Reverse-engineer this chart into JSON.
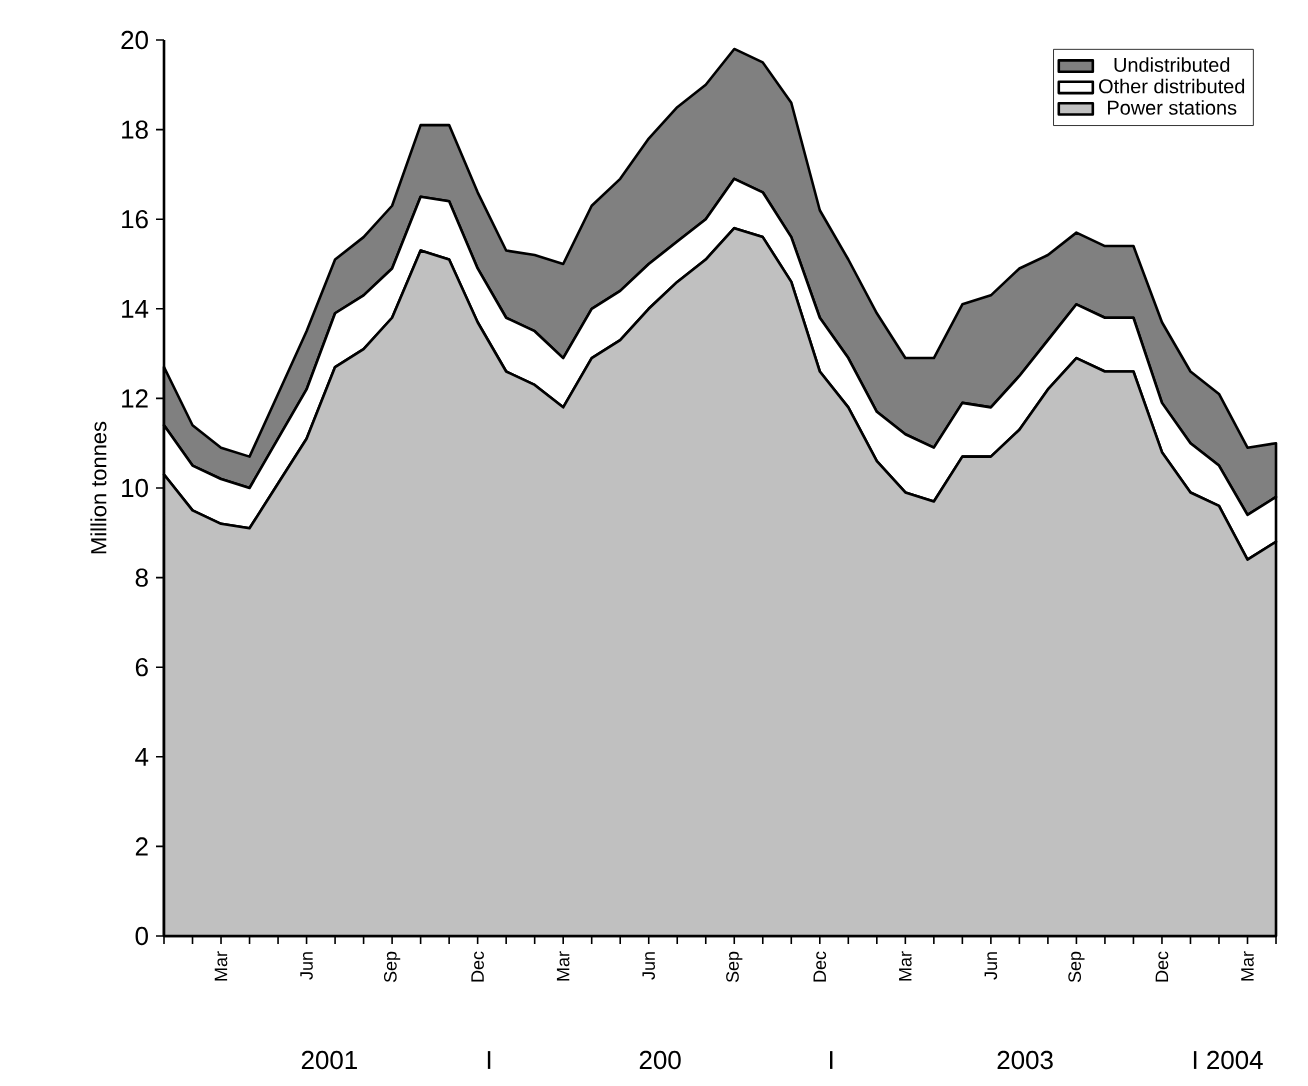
{
  "chart_data": {
    "type": "area",
    "stacked": true,
    "ylabel": "Million tonnes",
    "categories": [
      null,
      null,
      "Mar",
      null,
      null,
      "Jun",
      null,
      null,
      "Sep",
      null,
      null,
      "Dec",
      null,
      null,
      "Mar",
      null,
      null,
      "Jun",
      null,
      null,
      "Sep",
      null,
      null,
      "Dec",
      null,
      null,
      "Mar",
      null,
      null,
      "Jun",
      null,
      null,
      "Sep",
      null,
      null,
      "Dec",
      null,
      null,
      "Mar",
      null
    ],
    "series": [
      {
        "name": "Power stations",
        "color": "#c0c0c0",
        "values": [
          10.3,
          9.5,
          9.2,
          9.1,
          10.1,
          11.1,
          12.7,
          13.1,
          13.8,
          15.3,
          15.1,
          13.7,
          12.6,
          12.3,
          11.8,
          12.9,
          13.3,
          14.0,
          14.6,
          15.1,
          15.8,
          15.6,
          14.6,
          12.6,
          11.8,
          10.6,
          9.9,
          9.7,
          10.7,
          10.7,
          11.3,
          12.2,
          12.9,
          12.6,
          12.6,
          10.8,
          9.9,
          9.6,
          8.4,
          8.8
        ]
      },
      {
        "name": "Other distributed",
        "color": "#ffffff",
        "values": [
          1.1,
          1.0,
          1.0,
          0.9,
          1.0,
          1.1,
          1.2,
          1.2,
          1.1,
          1.2,
          1.3,
          1.2,
          1.2,
          1.2,
          1.1,
          1.1,
          1.1,
          1.0,
          0.9,
          0.9,
          1.1,
          1.0,
          1.0,
          1.2,
          1.1,
          1.1,
          1.3,
          1.2,
          1.2,
          1.1,
          1.2,
          1.1,
          1.2,
          1.2,
          1.2,
          1.1,
          1.1,
          0.9,
          1.0,
          1.0
        ]
      },
      {
        "name": "Undistributed",
        "color": "#808080",
        "values": [
          1.3,
          0.9,
          0.7,
          0.7,
          1.0,
          1.3,
          1.2,
          1.3,
          1.4,
          1.6,
          1.7,
          1.7,
          1.5,
          1.7,
          2.1,
          2.3,
          2.5,
          2.8,
          3.0,
          3.0,
          2.9,
          2.9,
          3.0,
          2.4,
          2.2,
          2.2,
          1.7,
          2.0,
          2.2,
          2.5,
          2.4,
          1.9,
          1.6,
          1.6,
          1.6,
          1.8,
          1.6,
          1.6,
          1.5,
          1.2
        ]
      }
    ],
    "ylim": [
      0,
      20
    ],
    "yticks": [
      0,
      2,
      4,
      6,
      8,
      10,
      12,
      14,
      16,
      18,
      20
    ],
    "grid": false,
    "legend": "top right",
    "annotations": [
      "2001",
      "I",
      "200",
      "I",
      "2003",
      "I 2004"
    ]
  }
}
